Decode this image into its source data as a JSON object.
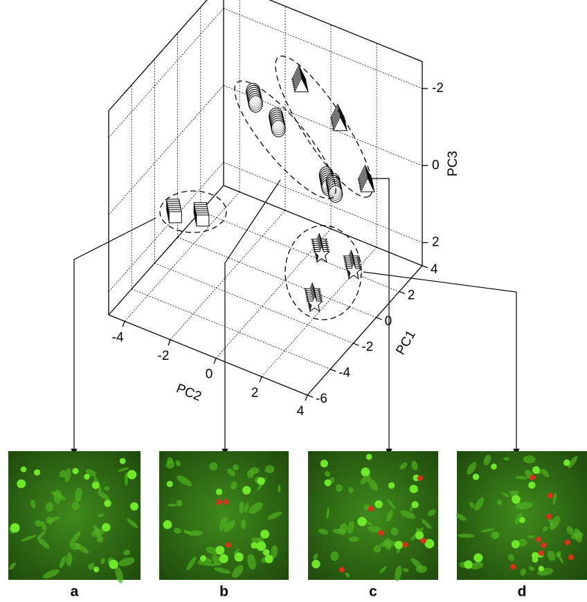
{
  "chart_data": {
    "type": "scatter3d",
    "xlabel": "PC2",
    "ylabel": "PC1",
    "zlabel": "PC3",
    "xlim": [
      -4.7,
      4
    ],
    "ylim": [
      -6,
      4
    ],
    "zlim": [
      2.6,
      -2.7
    ],
    "xticks": [
      -4,
      -2,
      0,
      2,
      4
    ],
    "yticks": [
      -6,
      -4,
      -2,
      0,
      2,
      4
    ],
    "zticks": [
      -2,
      0,
      2
    ],
    "grid": true,
    "series": [
      {
        "marker": "square",
        "color": "#000000",
        "x": [
          -3.4,
          -2.2
        ],
        "y": [
          -3,
          -3
        ],
        "z": [
          0.6,
          0.4
        ]
      },
      {
        "marker": "circle",
        "color": "#000000",
        "x": [
          -2.4,
          -1.4,
          0.8,
          1.1
        ],
        "y": [
          2,
          2,
          2,
          2
        ],
        "z": [
          -0.9,
          -0.5,
          0.5,
          0.6
        ]
      },
      {
        "marker": "triangle",
        "color": "#000000",
        "x": [
          -0.9,
          0.8,
          2.0
        ],
        "y": [
          3,
          3,
          3
        ],
        "z": [
          -1.4,
          -0.8,
          0.5
        ]
      },
      {
        "marker": "star",
        "color": "#000000",
        "x": [
          1.5,
          2.9,
          1.7
        ],
        "y": [
          0,
          0,
          -1
        ],
        "z": [
          1.4,
          1.5,
          2.3
        ]
      }
    ]
  },
  "panels": [
    "a",
    "b",
    "c",
    "d"
  ]
}
